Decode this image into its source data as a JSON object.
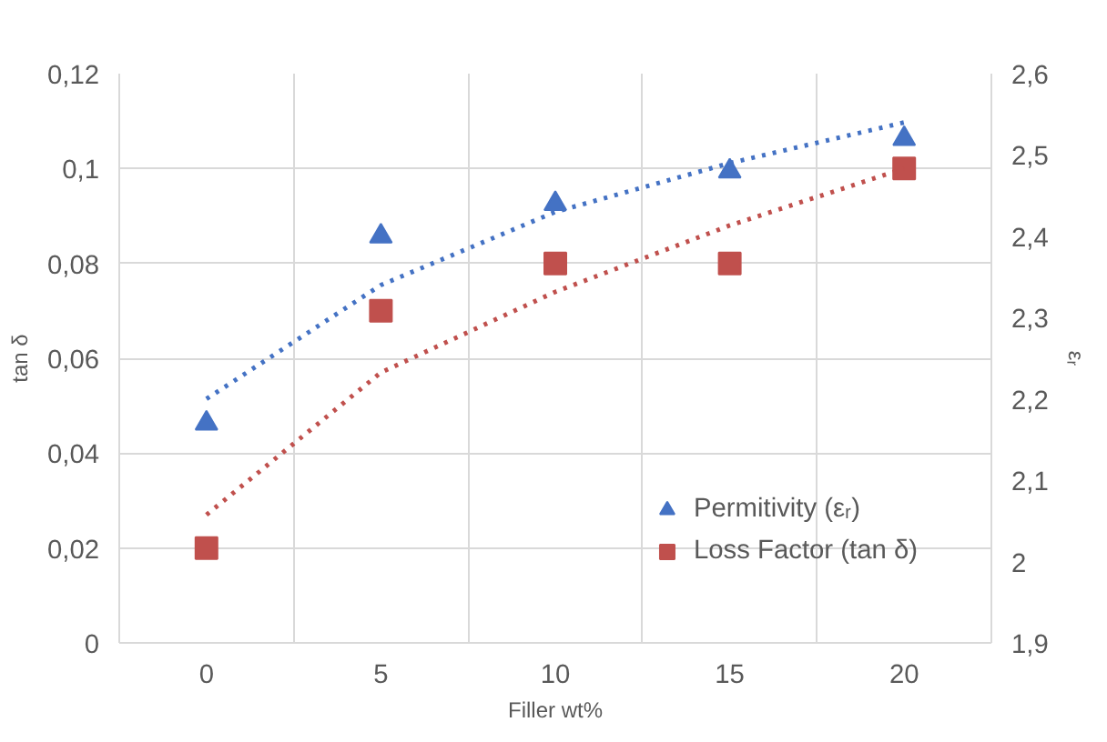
{
  "chart_data": {
    "type": "scatter",
    "xlabel": "Filler wt%",
    "ylabel": "tan δ",
    "y2label": "εᵣ",
    "categories": [
      "0",
      "5",
      "10",
      "15",
      "20"
    ],
    "series": [
      {
        "name": "Permitivity (εᵣ)",
        "color": "#4472c4",
        "marker": "triangle",
        "axis": "y2",
        "values": [
          2.17,
          2.4,
          2.44,
          2.48,
          2.52
        ]
      },
      {
        "name": "Loss Factor (tan δ)",
        "color": "#c0504d",
        "marker": "square",
        "values": [
          0.02,
          0.07,
          0.08,
          0.08,
          0.1
        ]
      },
      {
        "type": "line",
        "color": "#4472c4",
        "line_style": "dotted",
        "axis": "y2",
        "values": [
          2.2,
          2.34,
          2.43,
          2.49,
          2.54
        ]
      },
      {
        "type": "line",
        "color": "#c0504d",
        "line_style": "dotted",
        "values": [
          0.027,
          0.057,
          0.074,
          0.088,
          0.1
        ]
      }
    ],
    "ylim": [
      0,
      0.12
    ],
    "yticks": [
      {
        "value": 0,
        "label": "0"
      },
      {
        "value": 0.02,
        "label": "0,02"
      },
      {
        "value": 0.04,
        "label": "0,04"
      },
      {
        "value": 0.06,
        "label": "0,06"
      },
      {
        "value": 0.08,
        "label": "0,08"
      },
      {
        "value": 0.1,
        "label": "0,1"
      },
      {
        "value": 0.12,
        "label": "0,12"
      }
    ],
    "y2lim": [
      1.9,
      2.6
    ],
    "y2ticks": [
      {
        "value": 1.9,
        "label": "1,9"
      },
      {
        "value": 2.0,
        "label": "2"
      },
      {
        "value": 2.1,
        "label": "2,1"
      },
      {
        "value": 2.2,
        "label": "2,2"
      },
      {
        "value": 2.3,
        "label": "2,3"
      },
      {
        "value": 2.4,
        "label": "2,4"
      },
      {
        "value": 2.5,
        "label": "2,5"
      },
      {
        "value": 2.6,
        "label": "2,6"
      }
    ],
    "grid": true,
    "legend": "bottom right"
  }
}
